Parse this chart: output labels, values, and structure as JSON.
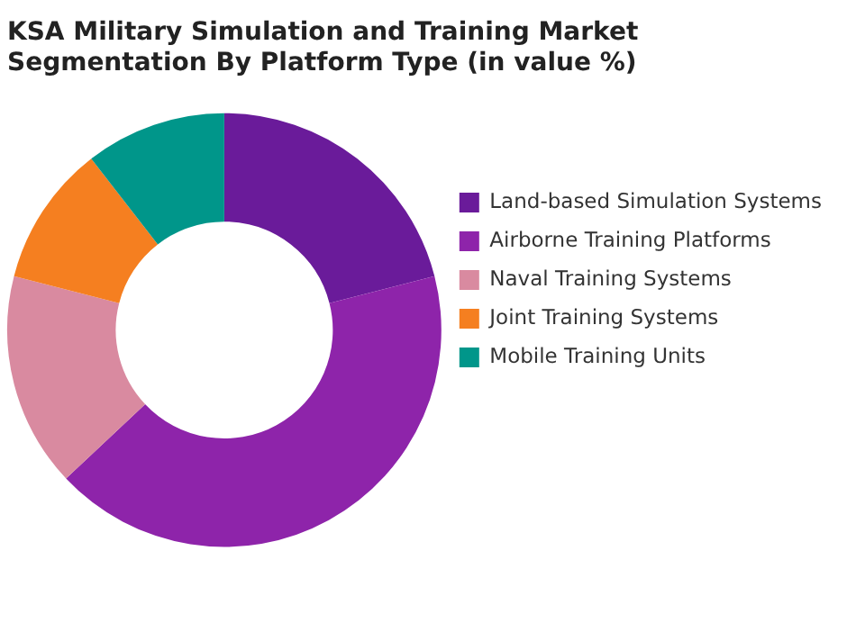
{
  "chart_data": {
    "type": "donut",
    "title": "KSA Military Simulation and Training Market Segmentation By Platform Type (in value %)",
    "categories": [
      "Land-based Simulation Systems",
      "Airborne Training Platforms",
      "Naval Training Systems",
      "Joint Training Systems",
      "Mobile Training Units"
    ],
    "values": [
      21,
      42,
      16,
      10.5,
      10.5
    ],
    "colors": [
      "#6a1b9a",
      "#8e24aa",
      "#d98aa0",
      "#f57f20",
      "#00968a"
    ],
    "legend": "right"
  }
}
